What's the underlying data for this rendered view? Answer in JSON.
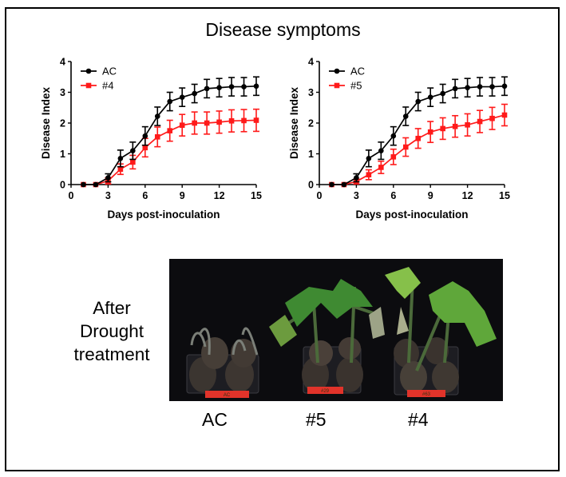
{
  "figure": {
    "title": "Disease symptoms",
    "photo_side_label_lines": [
      "After",
      "Drought",
      "treatment"
    ],
    "photo_group_labels": [
      "AC",
      "#5",
      "#4"
    ],
    "photo_tag_texts": [
      "AC",
      "#29",
      "#63"
    ]
  },
  "colors": {
    "control": "#000000",
    "line": "#ff1a1a"
  },
  "chart_data": [
    {
      "type": "line",
      "title": "",
      "xlabel": "Days post-inoculation",
      "ylabel": "Disease Index",
      "xlim": [
        0,
        15
      ],
      "ylim": [
        0,
        4
      ],
      "xticks": [
        0,
        3,
        6,
        9,
        12,
        15
      ],
      "yticks": [
        0,
        1,
        2,
        3,
        4
      ],
      "grid": false,
      "legend": "top-left",
      "x": [
        1,
        2,
        3,
        4,
        5,
        6,
        7,
        8,
        9,
        10,
        11,
        12,
        13,
        14,
        15
      ],
      "series": [
        {
          "name": "AC",
          "marker": "circle",
          "color": "#000000",
          "values": [
            0,
            0,
            0.22,
            0.85,
            1.1,
            1.58,
            2.22,
            2.7,
            2.84,
            2.96,
            3.12,
            3.15,
            3.18,
            3.18,
            3.2
          ],
          "error": [
            0,
            0,
            0.13,
            0.27,
            0.28,
            0.3,
            0.3,
            0.3,
            0.3,
            0.3,
            0.3,
            0.3,
            0.3,
            0.3,
            0.3
          ]
        },
        {
          "name": "#4",
          "marker": "square",
          "color": "#ff1a1a",
          "values": [
            0,
            0,
            0.12,
            0.5,
            0.73,
            1.2,
            1.55,
            1.75,
            1.93,
            2.0,
            2.0,
            2.03,
            2.07,
            2.08,
            2.09
          ],
          "error": [
            0,
            0,
            0.1,
            0.17,
            0.22,
            0.3,
            0.32,
            0.34,
            0.35,
            0.36,
            0.36,
            0.36,
            0.36,
            0.36,
            0.36
          ]
        }
      ]
    },
    {
      "type": "line",
      "title": "",
      "xlabel": "Days post-inoculation",
      "ylabel": "Disease Index",
      "xlim": [
        0,
        15
      ],
      "ylim": [
        0,
        4
      ],
      "xticks": [
        0,
        3,
        6,
        9,
        12,
        15
      ],
      "yticks": [
        0,
        1,
        2,
        3,
        4
      ],
      "grid": false,
      "legend": "top-left",
      "x": [
        1,
        2,
        3,
        4,
        5,
        6,
        7,
        8,
        9,
        10,
        11,
        12,
        13,
        14,
        15
      ],
      "series": [
        {
          "name": "AC",
          "marker": "circle",
          "color": "#000000",
          "values": [
            0,
            0,
            0.22,
            0.85,
            1.1,
            1.58,
            2.22,
            2.7,
            2.84,
            2.96,
            3.12,
            3.15,
            3.18,
            3.18,
            3.2
          ],
          "error": [
            0,
            0,
            0.13,
            0.27,
            0.28,
            0.3,
            0.3,
            0.3,
            0.3,
            0.3,
            0.3,
            0.3,
            0.3,
            0.3,
            0.3
          ]
        },
        {
          "name": "#5",
          "marker": "square",
          "color": "#ff1a1a",
          "values": [
            0,
            0,
            0.1,
            0.32,
            0.56,
            0.9,
            1.22,
            1.5,
            1.71,
            1.82,
            1.89,
            1.94,
            2.05,
            2.15,
            2.26
          ],
          "error": [
            0,
            0,
            0.08,
            0.16,
            0.2,
            0.25,
            0.3,
            0.32,
            0.34,
            0.35,
            0.35,
            0.36,
            0.36,
            0.36,
            0.35
          ]
        }
      ]
    }
  ]
}
